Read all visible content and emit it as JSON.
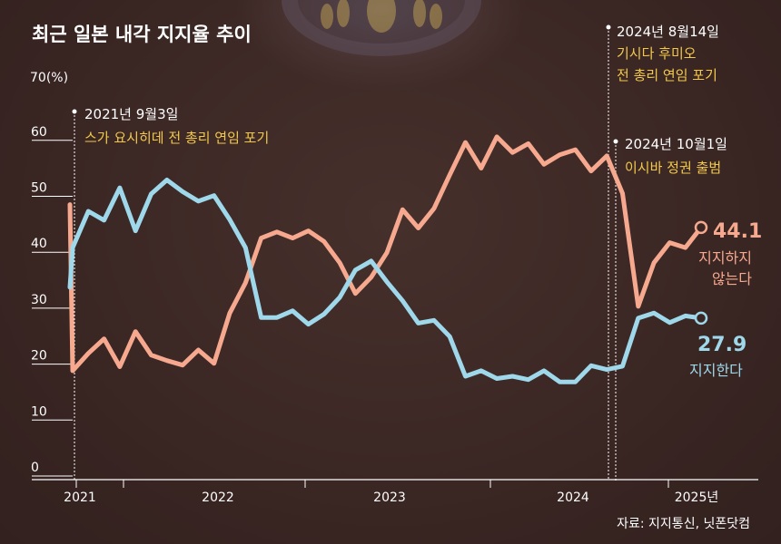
{
  "chart_data": {
    "type": "line",
    "title": "최근 일본 내각 지지율 추이",
    "y_unit_label": "70(%)",
    "yticks": [
      "0",
      "10",
      "20",
      "30",
      "40",
      "50",
      "60"
    ],
    "ylim": [
      0,
      70
    ],
    "xlim": [
      "2021-09",
      "2025-02"
    ],
    "x_tick_labels": [
      {
        "label": "2021",
        "x": "2021-09"
      },
      {
        "label": "2022",
        "x": "2022-05"
      },
      {
        "label": "2023",
        "x": "2023-06"
      },
      {
        "label": "2024",
        "x": "2024-07"
      },
      {
        "label": "2025년",
        "x": "2025-01"
      }
    ],
    "x": [
      "2021-09",
      "2021-10",
      "2021-11",
      "2021-12",
      "2022-01",
      "2022-02",
      "2022-03",
      "2022-04",
      "2022-05",
      "2022-06",
      "2022-07",
      "2022-08",
      "2022-09",
      "2022-10",
      "2022-11",
      "2022-12",
      "2023-01",
      "2023-02",
      "2023-03",
      "2023-04",
      "2023-05",
      "2023-06",
      "2023-07",
      "2023-08",
      "2023-09",
      "2023-10",
      "2023-11",
      "2023-12",
      "2024-01",
      "2024-02",
      "2024-03",
      "2024-04",
      "2024-05",
      "2024-06",
      "2024-07",
      "2024-08",
      "2024-09",
      "2024-10",
      "2024-11",
      "2024-12",
      "2025-01"
    ],
    "series": [
      {
        "name": "지지하지 않는다",
        "color": "#f6a98f",
        "start_value": 48.2,
        "values": [
          18.5,
          21.6,
          24.2,
          19.2,
          25.5,
          21.3,
          20.3,
          19.5,
          22.2,
          19.8,
          28.8,
          34.2,
          42.2,
          43.3,
          42.2,
          43.5,
          41.6,
          37.8,
          32.3,
          35.2,
          39.6,
          47.3,
          44.0,
          47.5,
          53.5,
          59.3,
          54.7,
          60.3,
          57.5,
          59.1,
          55.4,
          57.1,
          58.0,
          54.2,
          56.9,
          50.2,
          30.0,
          37.8,
          41.4,
          40.5,
          44.1
        ]
      },
      {
        "name": "지지한다",
        "color": "#9ed8ea",
        "start_value": 33.4,
        "values": [
          40.5,
          47.0,
          45.4,
          51.2,
          43.5,
          50.1,
          52.6,
          50.5,
          48.8,
          49.8,
          45.5,
          40.5,
          28.0,
          28.0,
          29.2,
          26.8,
          28.6,
          31.6,
          36.5,
          38.1,
          34.4,
          31.0,
          27.0,
          27.5,
          24.6,
          17.5,
          18.5,
          17.1,
          17.5,
          16.9,
          18.5,
          16.5,
          16.5,
          19.4,
          18.7,
          19.3,
          27.9,
          28.8,
          27.1,
          28.3,
          27.9
        ]
      }
    ],
    "end_labels": [
      {
        "value": "44.1",
        "label_line1": "지지하지",
        "label_line2": "않는다"
      },
      {
        "value": "27.9",
        "label_line1": "지지한다",
        "label_line2": ""
      }
    ],
    "annotations": [
      {
        "x": "2021-09",
        "date": "2021년 9월3일",
        "event": "스가 요시히데 전 총리 연임 포기"
      },
      {
        "x": "2024-08",
        "date": "2024년 8월14일",
        "event_line1": "기시다 후미오",
        "event_line2": "전 총리 연임 포기"
      },
      {
        "x": "2024-09",
        "date": "2024년 10월1일",
        "event": "이시바 정권 출범"
      }
    ],
    "grid": false
  },
  "source": "자료: 지지통신, 닛폰닷컴"
}
